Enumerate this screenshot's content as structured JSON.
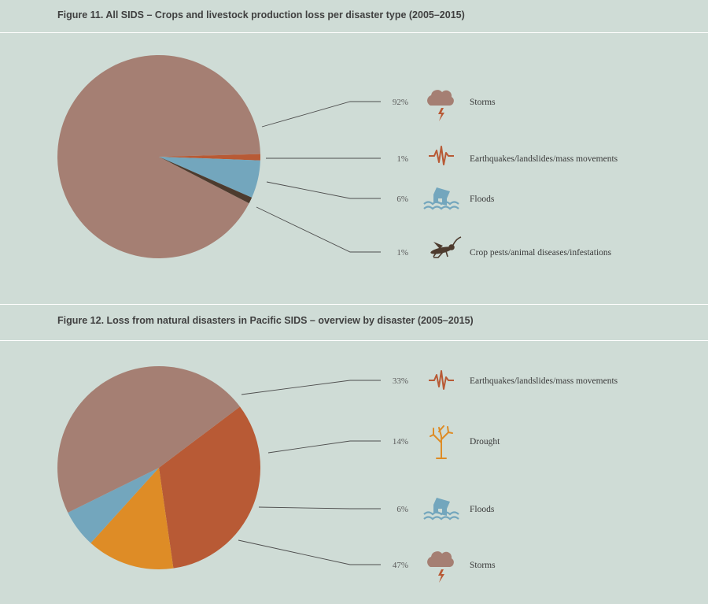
{
  "chart_data": [
    {
      "type": "pie",
      "title": "Figure 11. All SIDS – Crops and livestock production loss per disaster type (2005–2015)",
      "series": [
        {
          "label": "Storms",
          "percent_label": "92%",
          "value": 92,
          "color": "#a57f73",
          "icon": "storm-icon"
        },
        {
          "label": "Earthquakes/landslides/mass movements",
          "percent_label": "1%",
          "value": 1,
          "color": "#b85a35",
          "icon": "earthquake-icon"
        },
        {
          "label": "Floods",
          "percent_label": "6%",
          "value": 6,
          "color": "#73a6bd",
          "icon": "flood-icon"
        },
        {
          "label": "Crop pests/animal diseases/infestations",
          "percent_label": "1%",
          "value": 1,
          "color": "#4d3b2e",
          "icon": "locust-icon"
        }
      ]
    },
    {
      "type": "pie",
      "title": "Figure 12. Loss from natural disasters in Pacific SIDS – overview by disaster (2005–2015)",
      "series": [
        {
          "label": "Earthquakes/landslides/mass movements",
          "percent_label": "33%",
          "value": 33,
          "color": "#b85a35",
          "icon": "earthquake-icon"
        },
        {
          "label": "Drought",
          "percent_label": "14%",
          "value": 14,
          "color": "#de8c26",
          "icon": "drought-tree-icon"
        },
        {
          "label": "Floods",
          "percent_label": "6%",
          "value": 6,
          "color": "#73a6bd",
          "icon": "flood-icon"
        },
        {
          "label": "Storms",
          "percent_label": "47%",
          "value": 47,
          "color": "#a57f73",
          "icon": "storm-icon"
        }
      ]
    }
  ]
}
